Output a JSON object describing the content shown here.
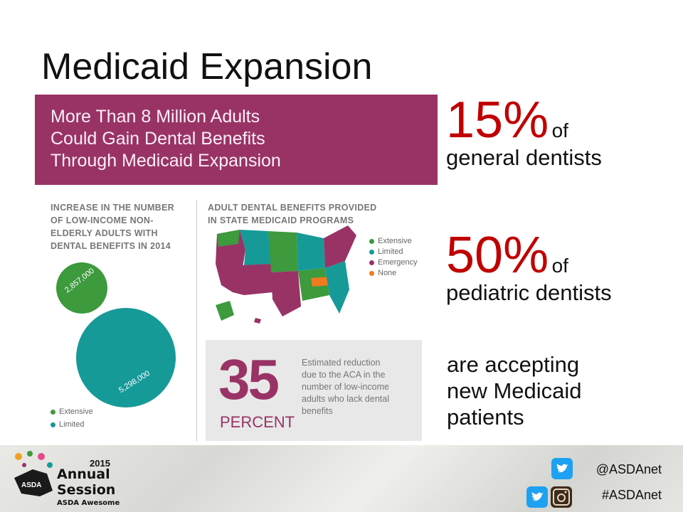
{
  "slide": {
    "title": "Medicaid Expansion"
  },
  "infographic": {
    "banner_lines": [
      "More Than 8 Million Adults",
      "Could Gain Dental Benefits",
      "Through Medicaid Expansion"
    ],
    "left_heading": [
      "INCREASE IN THE NUMBER",
      "OF LOW-INCOME NON-",
      "ELDERLY ADULTS WITH",
      "DENTAL BENEFITS IN 2014"
    ],
    "bubbles": [
      {
        "label": "2,857,000",
        "category": "Extensive",
        "color": "#3d9a3d"
      },
      {
        "label": "5,298,000",
        "category": "Limited",
        "color": "#159a98"
      }
    ],
    "left_legend": [
      {
        "label": "Extensive",
        "color": "#3d9a3d"
      },
      {
        "label": "Limited",
        "color": "#159a98"
      }
    ],
    "right_heading": [
      "ADULT DENTAL BENEFITS PROVIDED",
      "IN STATE MEDICAID PROGRAMS"
    ],
    "map_legend": [
      {
        "label": "Extensive",
        "color": "#3d9a3d"
      },
      {
        "label": "Limited",
        "color": "#159a98"
      },
      {
        "label": "Emergency",
        "color": "#993366"
      },
      {
        "label": "None",
        "color": "#f07a1e"
      }
    ],
    "big_number": "35",
    "big_unit": "PERCENT",
    "estimate_lines": [
      "Estimated reduction",
      "due to the ACA in the",
      "number of low-income",
      "adults who lack dental",
      "benefits"
    ]
  },
  "stats": [
    {
      "percent": "15%",
      "of": "of",
      "description": "general dentists"
    },
    {
      "percent": "50%",
      "of": "of",
      "description": "pediatric dentists"
    }
  ],
  "accepting_lines": [
    "are accepting",
    "new Medicaid",
    "patients"
  ],
  "footer": {
    "logo_year": "2015",
    "logo_line1": "Annual",
    "logo_line2": "Session",
    "logo_line3": "ASDA Awesome",
    "logo_badge": "ASDA",
    "twitter_handle": "@ASDAnet",
    "hashtag": "#ASDAnet",
    "colors": {
      "twitter": "#1da1f2",
      "instagram": "#3f2b1c"
    }
  }
}
